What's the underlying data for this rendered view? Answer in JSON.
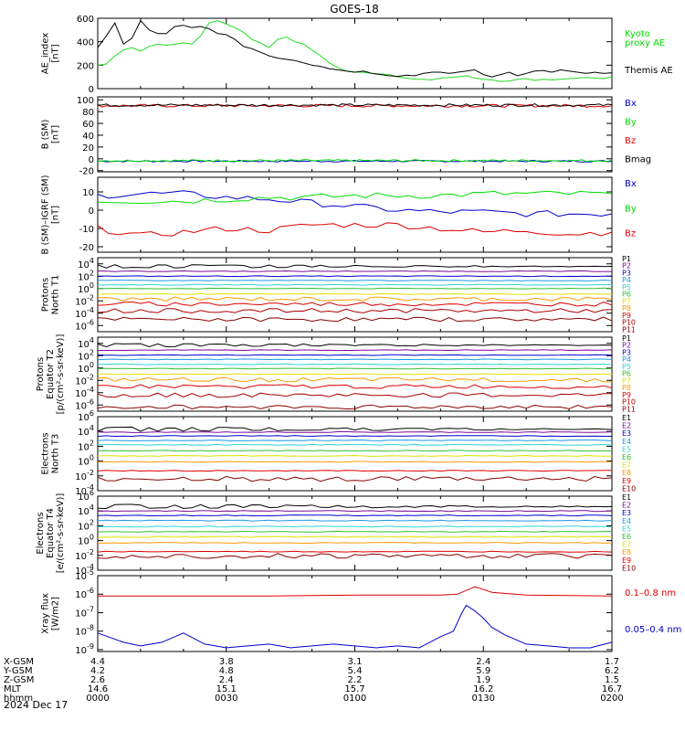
{
  "title": "GOES-18",
  "chart_data": [
    {
      "type": "line",
      "panel": "ae",
      "ylabel": [
        "AE_index",
        "[nT]"
      ],
      "ylim": [
        0,
        600
      ],
      "yticks": [
        0,
        200,
        400,
        600
      ],
      "ytick_labels": [
        "0",
        "200",
        "400",
        "600"
      ],
      "scale": "linear",
      "legend": [
        {
          "label": "Kyoto",
          "color": "#00dd00"
        },
        {
          "label": "proxy AE",
          "color": "#00dd00"
        },
        {
          "label": "Themis AE",
          "color": "#000000"
        }
      ],
      "series": [
        {
          "name": "Kyoto proxy AE",
          "color": "#22dd22",
          "x": [
            0,
            2,
            4,
            6,
            8,
            10,
            12,
            14,
            16,
            18,
            20,
            22,
            24,
            26,
            28,
            30,
            32,
            34,
            36,
            38,
            40,
            42,
            44,
            46,
            48,
            50,
            52,
            54,
            56,
            58,
            60,
            62,
            64,
            66,
            68,
            70,
            72,
            74,
            76,
            78,
            80,
            82,
            84,
            86,
            88,
            90,
            92,
            94,
            96,
            98,
            100,
            102,
            104,
            106,
            108,
            110,
            112,
            114,
            116,
            118,
            120
          ],
          "y": [
            200,
            210,
            280,
            330,
            350,
            320,
            360,
            380,
            370,
            380,
            390,
            380,
            450,
            560,
            580,
            550,
            520,
            480,
            420,
            390,
            350,
            420,
            440,
            400,
            380,
            330,
            280,
            220,
            180,
            150,
            140,
            140,
            130,
            125,
            120,
            100,
            90,
            80,
            80,
            75,
            90,
            95,
            100,
            110,
            90,
            80,
            75,
            60,
            65,
            80,
            85,
            70,
            80,
            75,
            80,
            85,
            90,
            95,
            90,
            85,
            100
          ]
        },
        {
          "name": "Themis AE",
          "color": "#000000",
          "x": [
            0,
            2,
            4,
            6,
            8,
            10,
            12,
            14,
            16,
            18,
            20,
            22,
            24,
            26,
            28,
            30,
            32,
            34,
            36,
            38,
            40,
            42,
            44,
            46,
            48,
            50,
            52,
            54,
            56,
            58,
            60,
            62,
            64,
            66,
            68,
            70,
            72,
            74,
            76,
            78,
            80,
            82,
            84,
            86,
            88,
            90,
            92,
            94,
            96,
            98,
            100,
            102,
            104,
            106,
            108,
            110,
            112,
            114,
            116,
            118,
            120
          ],
          "y": [
            350,
            450,
            560,
            380,
            430,
            580,
            500,
            470,
            470,
            530,
            540,
            520,
            530,
            510,
            470,
            460,
            420,
            360,
            340,
            310,
            280,
            260,
            250,
            240,
            220,
            200,
            190,
            170,
            160,
            150,
            140,
            150,
            130,
            120,
            110,
            105,
            115,
            110,
            130,
            140,
            140,
            130,
            140,
            150,
            160,
            120,
            100,
            120,
            140,
            110,
            130,
            150,
            155,
            140,
            160,
            150,
            140,
            130,
            140,
            130,
            135
          ]
        }
      ]
    },
    {
      "type": "line",
      "panel": "b_sm",
      "ylabel": [
        "B (SM)",
        "[nT]"
      ],
      "ylim": [
        -22,
        105
      ],
      "yticks": [
        -20,
        0,
        20,
        40,
        60,
        80,
        100
      ],
      "ytick_labels": [
        "-20",
        "0",
        "20",
        "40",
        "60",
        "80",
        "100"
      ],
      "scale": "linear",
      "legend": [
        {
          "label": "Bx",
          "color": "#0000cc"
        },
        {
          "label": "By",
          "color": "#00dd00"
        },
        {
          "label": "Bz",
          "color": "#dd0000"
        },
        {
          "label": "Bmag",
          "color": "#000000"
        }
      ],
      "series": [
        {
          "name": "Bx",
          "color": "#0000cc",
          "level": -4,
          "noise": 1.5
        },
        {
          "name": "By",
          "color": "#00dd00",
          "level": -3,
          "noise": 1.8
        },
        {
          "name": "Bz",
          "color": "#dd0000",
          "level": 90,
          "noise": 2.5
        },
        {
          "name": "Bmag",
          "color": "#000000",
          "level": 91,
          "noise": 2.2
        }
      ]
    },
    {
      "type": "line",
      "panel": "b_igrf",
      "ylabel": [
        "B (SM)–IGRF (SM)",
        "[nT]"
      ],
      "ylim": [
        -23,
        18
      ],
      "yticks": [
        -20,
        -10,
        0,
        10
      ],
      "ytick_labels": [
        "-20",
        "-10",
        "0",
        "10"
      ],
      "scale": "linear",
      "legend": [
        {
          "label": "Bx",
          "color": "#0000cc"
        },
        {
          "label": "By",
          "color": "#00dd00"
        },
        {
          "label": "Bz",
          "color": "#dd0000"
        }
      ],
      "series": [
        {
          "name": "Bx",
          "color": "#0000cc",
          "x": [
            0,
            10,
            20,
            30,
            40,
            50,
            60,
            70,
            80,
            90,
            100,
            110,
            120
          ],
          "y": [
            8,
            9,
            9,
            7,
            6,
            4,
            2,
            0,
            -1,
            -1,
            -2,
            -2,
            -2
          ]
        },
        {
          "name": "By",
          "color": "#00dd00",
          "x": [
            0,
            10,
            20,
            30,
            40,
            50,
            60,
            70,
            80,
            90,
            100,
            110,
            120
          ],
          "y": [
            5,
            5,
            5,
            6,
            7,
            7,
            8,
            8,
            8,
            9,
            9,
            9,
            9
          ]
        },
        {
          "name": "Bz",
          "color": "#dd0000",
          "x": [
            0,
            10,
            20,
            30,
            40,
            50,
            60,
            70,
            80,
            90,
            100,
            110,
            120
          ],
          "y": [
            -10,
            -14,
            -12,
            -10,
            -11,
            -8,
            -8,
            -8,
            -10,
            -12,
            -11,
            -13,
            -12
          ]
        }
      ]
    },
    {
      "type": "line",
      "panel": "protons_t1",
      "ylabel": [
        "Protons",
        "North T1"
      ],
      "scale": "log",
      "ylim_exp": [
        -7,
        5
      ],
      "yticks_exp": [
        -6,
        -4,
        -2,
        0,
        2,
        4
      ],
      "ytick_labels": [
        "10-6",
        "10-4",
        "10-2",
        "100",
        "102",
        "104"
      ],
      "legend": [
        "P1",
        "P2",
        "P3",
        "P4",
        "P5",
        "P6",
        "P7",
        "P8",
        "P9",
        "P10",
        "P11"
      ],
      "series": [
        {
          "name": "P1",
          "color": "#000000",
          "level_exp": 3.6
        },
        {
          "name": "P2",
          "color": "#7a0a9a",
          "level_exp": 2.8
        },
        {
          "name": "P3",
          "color": "#0000cc",
          "level_exp": 2.0
        },
        {
          "name": "P4",
          "color": "#1a9ae8",
          "level_exp": 1.3
        },
        {
          "name": "P5",
          "color": "#2fd3d3",
          "level_exp": 0.6
        },
        {
          "name": "P6",
          "color": "#30c030",
          "level_exp": 0.0
        },
        {
          "name": "P7",
          "color": "#e0e000",
          "level_exp": -0.9
        },
        {
          "name": "P8",
          "color": "#ff9900",
          "level_exp": -1.7
        },
        {
          "name": "P9",
          "color": "#dd0000",
          "level_exp": -2.5
        },
        {
          "name": "P10",
          "color": "#aa0000",
          "level_exp": -3.6
        },
        {
          "name": "P11",
          "color": "#880000",
          "level_exp": -5.0
        }
      ]
    },
    {
      "type": "line",
      "panel": "protons_t2",
      "ylabel": [
        "Protons",
        "Equator T2",
        "[p/(cm²-s-sr-keV)]"
      ],
      "scale": "log",
      "ylim_exp": [
        -7,
        5
      ],
      "yticks_exp": [
        -6,
        -4,
        -2,
        0,
        2,
        4
      ],
      "ytick_labels": [
        "10-6",
        "10-4",
        "10-2",
        "100",
        "102",
        "104"
      ],
      "legend": [
        "P1",
        "P2",
        "P3",
        "P4",
        "P5",
        "P6",
        "P7",
        "P8",
        "P9",
        "P10",
        "P11"
      ],
      "series": [
        {
          "name": "P1",
          "color": "#000000",
          "level_exp": 3.7
        },
        {
          "name": "P2",
          "color": "#7a0a9a",
          "level_exp": 2.9
        },
        {
          "name": "P3",
          "color": "#0000cc",
          "level_exp": 2.1
        },
        {
          "name": "P4",
          "color": "#1a9ae8",
          "level_exp": 1.4
        },
        {
          "name": "P5",
          "color": "#2fd3d3",
          "level_exp": 0.6
        },
        {
          "name": "P6",
          "color": "#30c030",
          "level_exp": -0.1
        },
        {
          "name": "P7",
          "color": "#e0e000",
          "level_exp": -1.0
        },
        {
          "name": "P8",
          "color": "#ff9900",
          "level_exp": -1.9
        },
        {
          "name": "P9",
          "color": "#dd0000",
          "level_exp": -3.0
        },
        {
          "name": "P10",
          "color": "#aa0000",
          "level_exp": -4.4
        },
        {
          "name": "P11",
          "color": "#880000",
          "level_exp": -6.3
        }
      ]
    },
    {
      "type": "line",
      "panel": "electrons_t3",
      "ylabel": [
        "Electrons",
        "North T3"
      ],
      "scale": "log",
      "ylim_exp": [
        -4,
        6
      ],
      "yticks_exp": [
        -4,
        -2,
        0,
        2,
        4,
        6
      ],
      "ytick_labels": [
        "10-4",
        "10-2",
        "100",
        "102",
        "104",
        "106"
      ],
      "legend": [
        "E1",
        "E2",
        "E3",
        "E4",
        "E5",
        "E6",
        "E7",
        "E8",
        "E9",
        "E10"
      ],
      "series": [
        {
          "name": "E1",
          "color": "#000000",
          "level_exp": 4.3
        },
        {
          "name": "E2",
          "color": "#7a0a9a",
          "level_exp": 3.9
        },
        {
          "name": "E3",
          "color": "#0000cc",
          "level_exp": 3.4
        },
        {
          "name": "E4",
          "color": "#1a9ae8",
          "level_exp": 2.8
        },
        {
          "name": "E5",
          "color": "#2fd3d3",
          "level_exp": 2.2
        },
        {
          "name": "E6",
          "color": "#30c030",
          "level_exp": 1.4
        },
        {
          "name": "E7",
          "color": "#e0e000",
          "level_exp": 0.7
        },
        {
          "name": "E8",
          "color": "#ff9900",
          "level_exp": -0.1
        },
        {
          "name": "E9",
          "color": "#dd0000",
          "level_exp": -1.3
        },
        {
          "name": "E10",
          "color": "#880000",
          "level_exp": -2.4
        }
      ]
    },
    {
      "type": "line",
      "panel": "electrons_t4",
      "ylabel": [
        "Electrons",
        "Equator T4",
        "[e/(cm²-s-sr-keV)]"
      ],
      "scale": "log",
      "ylim_exp": [
        -4,
        6
      ],
      "yticks_exp": [
        -4,
        -2,
        0,
        2,
        4,
        6
      ],
      "ytick_labels": [
        "10-4",
        "10-2",
        "100",
        "102",
        "104",
        "106"
      ],
      "legend": [
        "E1",
        "E2",
        "E3",
        "E4",
        "E5",
        "E6",
        "E7",
        "E8",
        "E9",
        "E10"
      ],
      "series": [
        {
          "name": "E1",
          "color": "#000000",
          "level_exp": 4.6
        },
        {
          "name": "E2",
          "color": "#7a0a9a",
          "level_exp": 4.0
        },
        {
          "name": "E3",
          "color": "#0000cc",
          "level_exp": 3.4
        },
        {
          "name": "E4",
          "color": "#1a9ae8",
          "level_exp": 2.7
        },
        {
          "name": "E5",
          "color": "#2fd3d3",
          "level_exp": 1.9
        },
        {
          "name": "E6",
          "color": "#30c030",
          "level_exp": 1.2
        },
        {
          "name": "E7",
          "color": "#e0e000",
          "level_exp": 0.5
        },
        {
          "name": "E8",
          "color": "#ff9900",
          "level_exp": -0.3
        },
        {
          "name": "E9",
          "color": "#dd0000",
          "level_exp": -1.5
        },
        {
          "name": "E10",
          "color": "#880000",
          "level_exp": -2.1
        }
      ]
    },
    {
      "type": "line",
      "panel": "xray",
      "ylabel": [
        "Xray flux",
        "[W/m2]"
      ],
      "scale": "log",
      "ylim_exp": [
        -9.1,
        -5
      ],
      "yticks_exp": [
        -9,
        -8,
        -7,
        -6,
        -5
      ],
      "ytick_labels": [
        "10-9",
        "10-8",
        "10-7",
        "10-6",
        "10-5"
      ],
      "legend": [
        {
          "label": "0.1–0.8 nm",
          "color": "#dd0000"
        },
        {
          "label": "0.05–0.4 nm",
          "color": "#0000cc"
        }
      ],
      "series": [
        {
          "name": "0.1–0.8 nm",
          "color": "#dd0000",
          "x": [
            0,
            20,
            40,
            60,
            80,
            84,
            86,
            88,
            90,
            92,
            100,
            120
          ],
          "y_exp": [
            -6.1,
            -6.1,
            -6.1,
            -6.05,
            -6.05,
            -6.0,
            -5.8,
            -5.6,
            -5.75,
            -5.9,
            -6.05,
            -6.1
          ]
        },
        {
          "name": "0.05–0.4 nm",
          "color": "#0000cc",
          "x": [
            0,
            6,
            10,
            15,
            20,
            25,
            30,
            35,
            40,
            45,
            50,
            55,
            60,
            65,
            70,
            75,
            80,
            83,
            85,
            86,
            88,
            90,
            92,
            95,
            100,
            105,
            110,
            115,
            120
          ],
          "y_exp": [
            -8.1,
            -8.6,
            -8.8,
            -8.6,
            -8.1,
            -8.7,
            -8.9,
            -8.8,
            -8.7,
            -8.9,
            -8.8,
            -8.7,
            -8.8,
            -8.9,
            -8.8,
            -8.9,
            -8.3,
            -8.0,
            -7.0,
            -6.6,
            -6.9,
            -7.3,
            -7.8,
            -8.2,
            -8.7,
            -8.8,
            -8.9,
            -8.9,
            -8.6
          ]
        }
      ]
    }
  ],
  "x_axis": {
    "xlim": [
      0,
      120
    ],
    "ticks": [
      {
        "x": 0,
        "xgsm": "4.4",
        "ygsm": "4.2",
        "zgsm": "2.6",
        "mlt": "14.6",
        "hhmm": "0000"
      },
      {
        "x": 30,
        "xgsm": "3.8",
        "ygsm": "4.8",
        "zgsm": "2.4",
        "mlt": "15.1",
        "hhmm": "0030"
      },
      {
        "x": 60,
        "xgsm": "3.1",
        "ygsm": "5.4",
        "zgsm": "2.2",
        "mlt": "15.7",
        "hhmm": "0100"
      },
      {
        "x": 90,
        "xgsm": "2.4",
        "ygsm": "5.9",
        "zgsm": "1.9",
        "mlt": "16.2",
        "hhmm": "0130"
      },
      {
        "x": 120,
        "xgsm": "1.7",
        "ygsm": "6.2",
        "zgsm": "1.5",
        "mlt": "16.7",
        "hhmm": "0200"
      }
    ],
    "row_labels": [
      "X-GSM",
      "Y-GSM",
      "Z-GSM",
      "MLT",
      "hhmm"
    ],
    "date": "2024 Dec 17"
  }
}
